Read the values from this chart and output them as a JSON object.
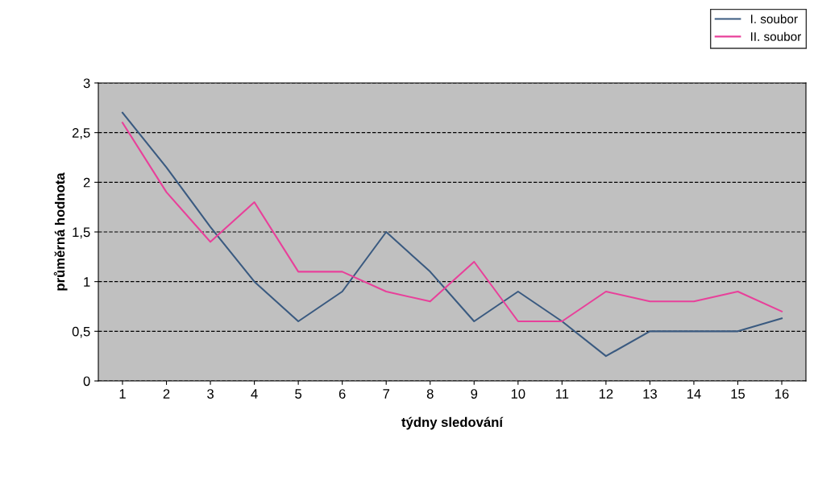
{
  "chart_data": {
    "type": "line",
    "xlabel": "týdny sledování",
    "ylabel": "průměrná hodnota",
    "categories": [
      "1",
      "2",
      "3",
      "4",
      "5",
      "6",
      "7",
      "8",
      "9",
      "10",
      "11",
      "12",
      "13",
      "14",
      "15",
      "16"
    ],
    "series": [
      {
        "name": "I. soubor",
        "color": "#3a5a80",
        "values": [
          2.7,
          2.15,
          1.55,
          1.0,
          0.6,
          0.9,
          1.5,
          1.1,
          0.6,
          0.9,
          0.6,
          0.25,
          0.5,
          0.5,
          0.5,
          0.63
        ]
      },
      {
        "name": "II. soubor",
        "color": "#e8409a",
        "values": [
          2.6,
          1.9,
          1.4,
          1.8,
          1.1,
          1.1,
          0.9,
          0.8,
          1.2,
          0.6,
          0.6,
          0.9,
          0.8,
          0.8,
          0.9,
          0.7
        ]
      }
    ],
    "ylim": [
      0,
      3
    ],
    "yticks": [
      0,
      {
        "value": 0.5,
        "label": "0,5"
      },
      1,
      {
        "value": 1.5,
        "label": "1,5"
      },
      2,
      {
        "value": 2.5,
        "label": "2,5"
      },
      3
    ],
    "grid": "y",
    "legend": "top right",
    "marker": "none",
    "line_style": "solid"
  }
}
